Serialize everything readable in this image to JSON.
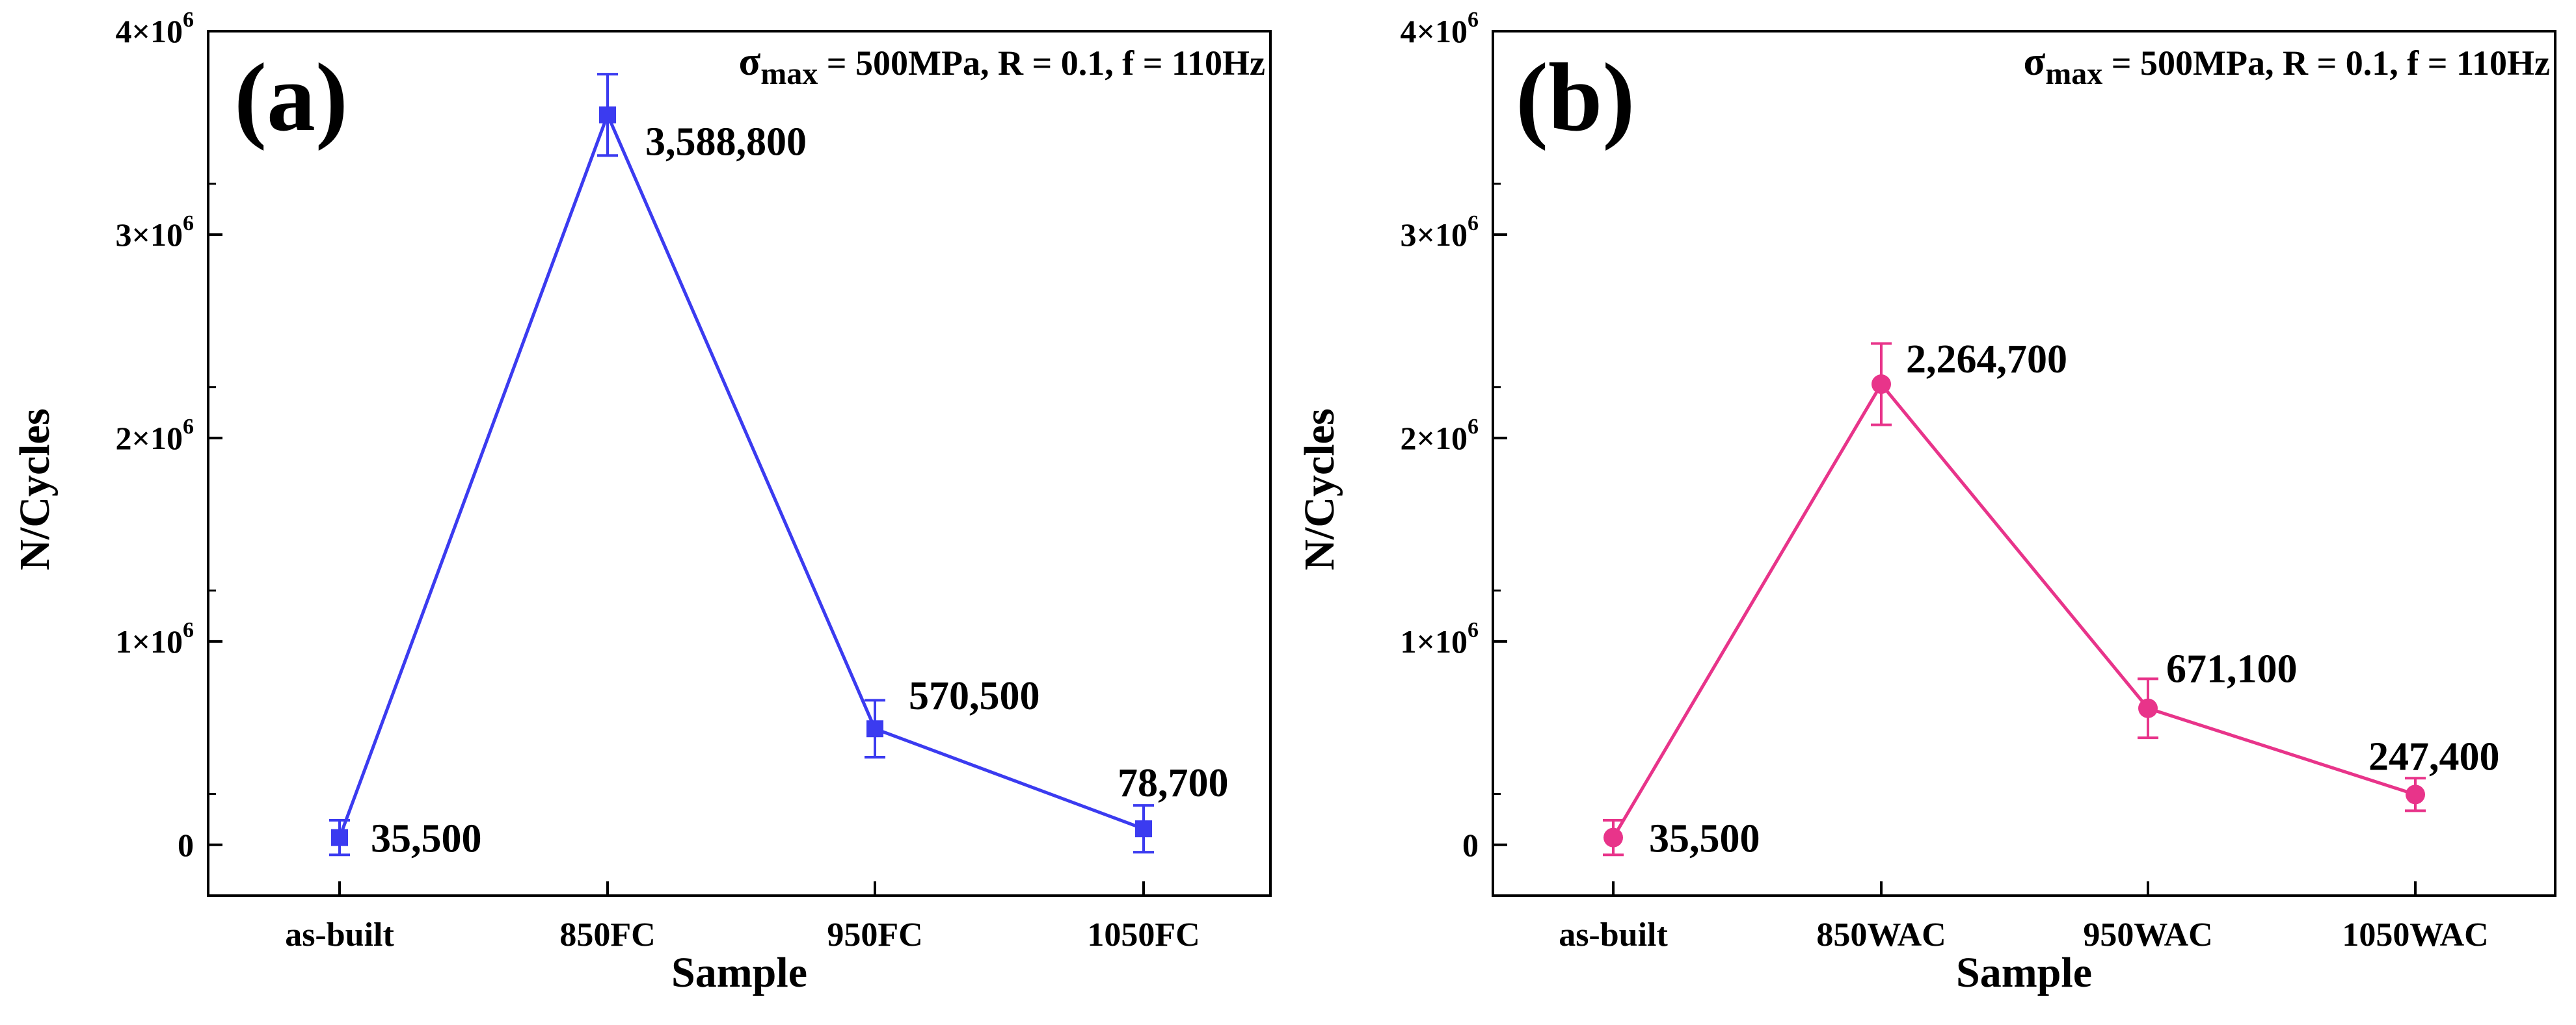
{
  "chart_data": [
    {
      "type": "line",
      "panel": "(a)",
      "condition": {
        "sigma": "σ",
        "sub": "max",
        "rest": " = 500MPa, R = 0.1, f = 110Hz"
      },
      "xlabel": "Sample",
      "ylabel": "N/Cycles",
      "categories": [
        "as-built",
        "850FC",
        "950FC",
        "1050FC"
      ],
      "values": [
        35500,
        3588800,
        570500,
        78700
      ],
      "errors": [
        85000,
        200000,
        140000,
        115000
      ],
      "value_labels": [
        "35,500",
        "3,588,800",
        "570,500",
        "78,700"
      ],
      "ylim": [
        -250000,
        4000000
      ],
      "yticks": [
        {
          "value": 0,
          "label": "0"
        },
        {
          "value": 1000000,
          "label": "1×10",
          "exp": "6"
        },
        {
          "value": 2000000,
          "label": "2×10",
          "exp": "6"
        },
        {
          "value": 3000000,
          "label": "3×10",
          "exp": "6"
        },
        {
          "value": 4000000,
          "label": "4×10",
          "exp": "6"
        }
      ],
      "marker": "square",
      "color": "#3b3bf0"
    },
    {
      "type": "line",
      "panel": "(b)",
      "condition": {
        "sigma": "σ",
        "sub": "max",
        "rest": " = 500MPa, R = 0.1, f = 110Hz"
      },
      "xlabel": "Sample",
      "ylabel": "N/Cycles",
      "categories": [
        "as-built",
        "850WAC",
        "950WAC",
        "1050WAC"
      ],
      "values": [
        35500,
        2264700,
        671100,
        247400
      ],
      "errors": [
        85000,
        200000,
        145000,
        80000
      ],
      "value_labels": [
        "35,500",
        "2,264,700",
        "671,100",
        "247,400"
      ],
      "ylim": [
        -250000,
        4000000
      ],
      "yticks": [
        {
          "value": 0,
          "label": "0"
        },
        {
          "value": 1000000,
          "label": "1×10",
          "exp": "6"
        },
        {
          "value": 2000000,
          "label": "2×10",
          "exp": "6"
        },
        {
          "value": 3000000,
          "label": "3×10",
          "exp": "6"
        },
        {
          "value": 4000000,
          "label": "4×10",
          "exp": "6"
        }
      ],
      "marker": "circle",
      "color": "#e8348a"
    }
  ]
}
